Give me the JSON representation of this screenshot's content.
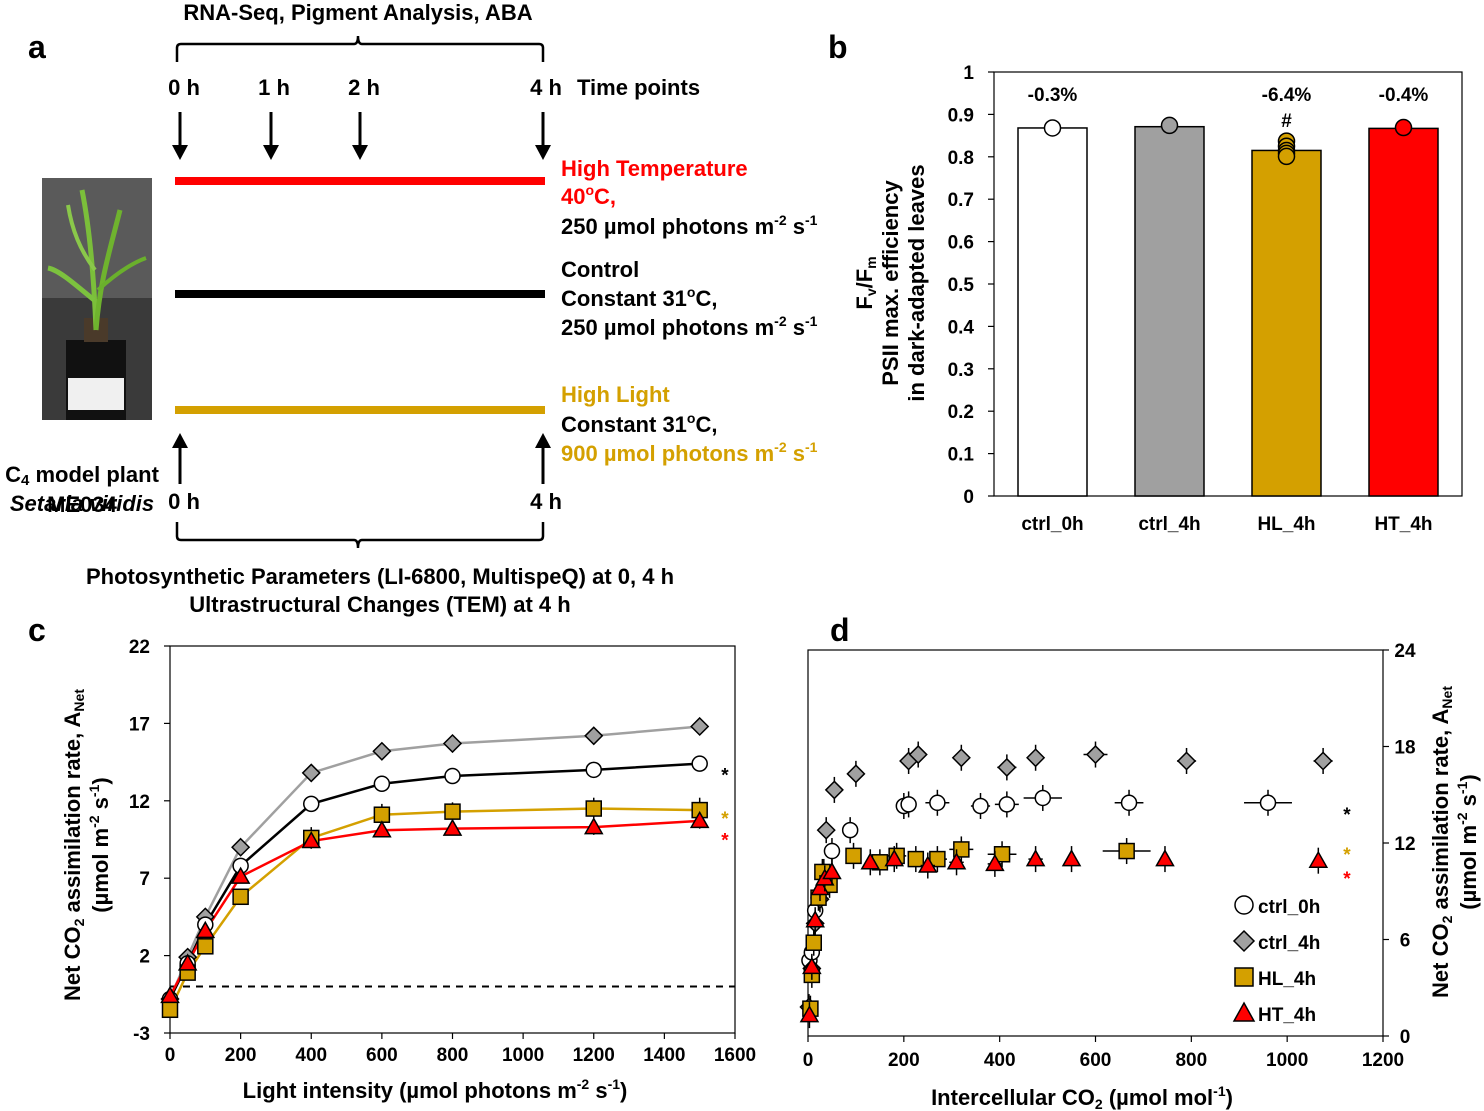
{
  "panel_labels": {
    "a": "a",
    "b": "b",
    "c": "c",
    "d": "d"
  },
  "colors": {
    "red": "#ff0000",
    "black": "#000000",
    "gold": "#d4a000",
    "gray": "#a0a0a0",
    "white": "#ffffff"
  },
  "panel_a": {
    "top_bracket_label": "RNA-Seq, Pigment Analysis, ABA",
    "time_points": [
      "0 h",
      "1 h",
      "2 h",
      "4 h"
    ],
    "time_points_label": "Time points",
    "plant_photo": "Setaria viridis seedling in pot with label",
    "plant_caption": {
      "line1_sub": "4",
      "line1": "C",
      "line1_rest": " model plant",
      "line2": "Setaria viridis",
      "line3": "ME034"
    },
    "bottom_time_start": "0 h",
    "bottom_time_end": "4 h",
    "treatments": {
      "ht": {
        "title": "High Temperature",
        "temp": "40",
        "temp_suffix": "C,",
        "light": "250 µmol photons m",
        "exp1": "-2",
        "s": " s",
        "exp2": "-1"
      },
      "ctrl": {
        "title": "Control",
        "temp": "Constant 31",
        "temp_suffix": "C,",
        "light": "250 µmol photons m",
        "exp1": "-2",
        "s": " s",
        "exp2": "-1"
      },
      "hl": {
        "title": "High Light",
        "temp": "Constant 31",
        "temp_suffix": "C,",
        "light": "900 µmol photons m",
        "exp1": "-2",
        "s": " s",
        "exp2": "-1"
      }
    },
    "deg_symbol": "o",
    "bottom_label_1": "Photosynthetic Parameters (LI-6800, MultispeQ) at 0, 4 h",
    "bottom_label_2": "Ultrastructural Changes (TEM) at 4 h"
  },
  "chart_data": [
    {
      "panel": "b",
      "type": "bar",
      "categories": [
        "ctrl_0h",
        "ctrl_4h",
        "HL_4h",
        "HT_4h"
      ],
      "values": [
        0.868,
        0.871,
        0.815,
        0.867
      ],
      "points": [
        [
          0.868
        ],
        [
          0.874
        ],
        [
          0.837,
          0.825,
          0.815,
          0.808,
          0.801
        ],
        [
          0.869
        ]
      ],
      "bar_colors": [
        "#ffffff",
        "#a0a0a0",
        "#d4a000",
        "#ff0000"
      ],
      "annotations": [
        "-0.3%",
        "",
        "-6.4%",
        "-0.4%"
      ],
      "significance": [
        "",
        "",
        "#",
        ""
      ],
      "ylim": [
        0,
        1
      ],
      "yticks": [
        "0",
        "0.1",
        "0.2",
        "0.3",
        "0.4",
        "0.5",
        "0.6",
        "0.7",
        "0.8",
        "0.9",
        "1"
      ],
      "ylabel_top": "F",
      "ylabel_v": "v",
      "ylabel_slash": "/F",
      "ylabel_m": "m",
      "ylabel_line2": "PSII max. efficiency",
      "ylabel_line3": "in dark-adapted leaves"
    },
    {
      "panel": "c",
      "type": "line",
      "xlim": [
        0,
        1600
      ],
      "ylim": [
        -3,
        22
      ],
      "xticks": [
        "0",
        "200",
        "400",
        "600",
        "800",
        "1000",
        "1200",
        "1400",
        "1600"
      ],
      "yticks": [
        "-3",
        "2",
        "7",
        "12",
        "17",
        "22"
      ],
      "xlabel": "Light intensity (µmol photons m",
      "xlabel_exp1": "-2",
      "xlabel_s": " s",
      "xlabel_exp2": "-1",
      "xlabel_close": ")",
      "ylabel_1": "Net CO",
      "ylabel_sub": "2",
      "ylabel_2": " assimilation rate, A",
      "ylabel_net": "Net",
      "ylabel_line2": "(µmol m",
      "ylabel_line2_exp1": "-2",
      "ylabel_line2_s": " s",
      "ylabel_line2_exp2": "-1",
      "ylabel_line2_close": ")",
      "reference_line": 0,
      "x": [
        0,
        50,
        100,
        200,
        400,
        600,
        800,
        1200,
        1500
      ],
      "series": [
        {
          "name": "ctrl_4h",
          "marker": "diamond",
          "fill": "#a0a0a0",
          "line": "#a0a0a0",
          "values": [
            -0.8,
            1.9,
            4.5,
            9.0,
            13.8,
            15.2,
            15.7,
            16.2,
            16.8
          ],
          "err": [
            0.3,
            0.2,
            0.3,
            0.3,
            0.3,
            0.5,
            0.3,
            0.3,
            0.3
          ]
        },
        {
          "name": "ctrl_0h",
          "marker": "circle",
          "fill": "#ffffff",
          "line": "#000000",
          "values": [
            -0.8,
            1.5,
            4.0,
            7.8,
            11.8,
            13.1,
            13.6,
            14.0,
            14.4
          ],
          "err": [
            0.2,
            0.2,
            0.3,
            0.3,
            0.3,
            0.3,
            0.3,
            0.3,
            0.3
          ]
        },
        {
          "name": "HL_4h",
          "marker": "square",
          "fill": "#d4a000",
          "line": "#d4a000",
          "values": [
            -1.5,
            0.9,
            2.6,
            5.8,
            9.6,
            11.1,
            11.3,
            11.5,
            11.4
          ],
          "err": [
            0.3,
            0.3,
            0.3,
            0.3,
            0.7,
            0.7,
            0.6,
            0.7,
            0.8
          ]
        },
        {
          "name": "HT_4h",
          "marker": "triangle",
          "fill": "#ff0000",
          "line": "#ff0000",
          "values": [
            -0.6,
            1.5,
            3.6,
            7.1,
            9.4,
            10.1,
            10.2,
            10.3,
            10.7
          ],
          "err": [
            0.3,
            0.3,
            0.3,
            0.3,
            0.4,
            0.4,
            0.4,
            0.5,
            0.5
          ]
        }
      ],
      "asterisks": [
        {
          "text": "*",
          "color": "#000000",
          "y": 14.4
        },
        {
          "text": "*",
          "color": "#d4a000",
          "y": 11.6
        },
        {
          "text": "*",
          "color": "#ff0000",
          "y": 10.2
        }
      ]
    },
    {
      "panel": "d",
      "type": "scatter",
      "xlim": [
        0,
        1200
      ],
      "ylim": [
        0,
        24
      ],
      "xticks": [
        "0",
        "200",
        "400",
        "600",
        "800",
        "1000",
        "1200"
      ],
      "yticks": [
        "0",
        "6",
        "12",
        "18",
        "24"
      ],
      "xlabel": "Intercellular CO",
      "xlabel_sub": "2",
      "xlabel_rest": " (µmol mol",
      "xlabel_exp": "-1",
      "xlabel_close": ")",
      "ylabel_1": "Net CO",
      "ylabel_sub": "2",
      "ylabel_2": " assimilation rate, A",
      "ylabel_net": "Net",
      "ylabel_line2": "(µmol m",
      "ylabel_line2_exp1": "-2",
      "ylabel_line2_s": " s",
      "ylabel_line2_exp2": "-1",
      "ylabel_line2_close": ")",
      "legend_position": "bottom-right",
      "series": [
        {
          "name": "ctrl_0h",
          "marker": "circle",
          "fill": "#ffffff",
          "points": [
            [
              3,
              4.7
            ],
            [
              8,
              5.2
            ],
            [
              15,
              7.8
            ],
            [
              22,
              8.6
            ],
            [
              33,
              10.2
            ],
            [
              50,
              11.5
            ],
            [
              88,
              12.8
            ],
            [
              200,
              14.3
            ],
            [
              210,
              14.4
            ],
            [
              270,
              14.5
            ],
            [
              360,
              14.3
            ],
            [
              415,
              14.4
            ],
            [
              490,
              14.8
            ],
            [
              670,
              14.5
            ],
            [
              960,
              14.5
            ]
          ],
          "xerr": [
            0,
            0,
            0,
            0,
            0,
            0,
            0,
            15,
            15,
            25,
            20,
            25,
            40,
            30,
            50
          ]
        },
        {
          "name": "ctrl_4h",
          "marker": "diamond",
          "fill": "#a0a0a0",
          "points": [
            [
              2,
              1.8
            ],
            [
              8,
              4.2
            ],
            [
              15,
              7.0
            ],
            [
              25,
              8.5
            ],
            [
              38,
              12.8
            ],
            [
              55,
              15.3
            ],
            [
              100,
              16.3
            ],
            [
              210,
              17.1
            ],
            [
              230,
              17.5
            ],
            [
              320,
              17.3
            ],
            [
              415,
              16.7
            ],
            [
              475,
              17.3
            ],
            [
              600,
              17.5
            ],
            [
              790,
              17.1
            ],
            [
              1075,
              17.1
            ]
          ],
          "xerr": [
            0,
            0,
            0,
            0,
            0,
            0,
            0,
            10,
            10,
            15,
            20,
            15,
            25,
            20,
            20
          ]
        },
        {
          "name": "HL_4h",
          "marker": "square",
          "fill": "#d4a000",
          "points": [
            [
              5,
              1.7
            ],
            [
              8,
              3.8
            ],
            [
              12,
              5.8
            ],
            [
              22,
              8.6
            ],
            [
              30,
              10.2
            ],
            [
              45,
              9.4
            ],
            [
              95,
              11.2
            ],
            [
              150,
              10.8
            ],
            [
              185,
              11.2
            ],
            [
              225,
              11.0
            ],
            [
              270,
              11.0
            ],
            [
              320,
              11.6
            ],
            [
              405,
              11.3
            ],
            [
              665,
              11.5
            ]
          ],
          "xerr": [
            0,
            0,
            0,
            0,
            0,
            0,
            0,
            10,
            20,
            15,
            20,
            25,
            30,
            50
          ]
        },
        {
          "name": "HT_4h",
          "marker": "triangle",
          "fill": "#ff0000",
          "points": [
            [
              3,
              1.3
            ],
            [
              8,
              4.3
            ],
            [
              15,
              7.2
            ],
            [
              25,
              9.2
            ],
            [
              35,
              9.8
            ],
            [
              50,
              10.2
            ],
            [
              130,
              10.8
            ],
            [
              180,
              11.0
            ],
            [
              250,
              10.6
            ],
            [
              310,
              10.8
            ],
            [
              390,
              10.7
            ],
            [
              475,
              11.0
            ],
            [
              550,
              11.0
            ],
            [
              745,
              11.0
            ],
            [
              1065,
              10.9
            ]
          ],
          "xerr": [
            0,
            0,
            0,
            0,
            0,
            0,
            10,
            10,
            15,
            15,
            15,
            15,
            10,
            10,
            10
          ]
        }
      ],
      "asterisks": [
        {
          "text": "*",
          "color": "#000000",
          "y": 14.5
        },
        {
          "text": "*",
          "color": "#d4a000",
          "y": 12.0
        },
        {
          "text": "*",
          "color": "#ff0000",
          "y": 10.5
        }
      ],
      "legend": [
        "ctrl_0h",
        "ctrl_4h",
        "HL_4h",
        "HT_4h"
      ]
    }
  ]
}
